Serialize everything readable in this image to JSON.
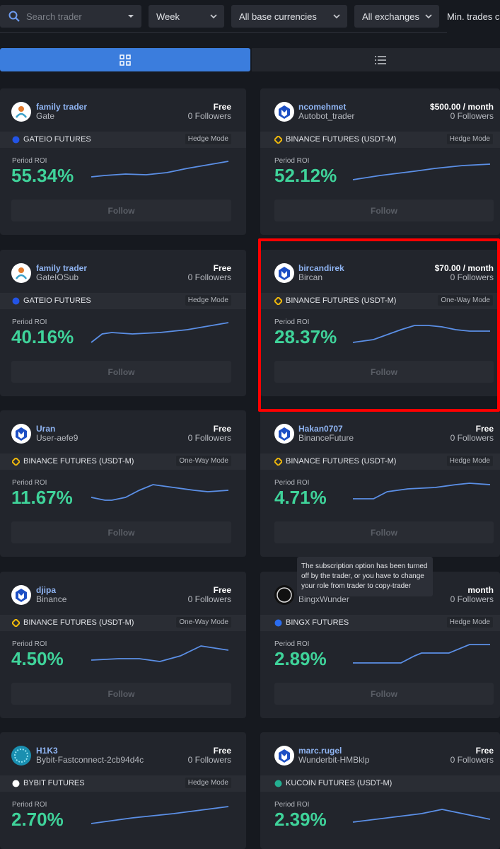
{
  "filters": {
    "search_placeholder": "Search trader",
    "period": "Week",
    "currencies": "All base currencies",
    "exchanges": "All exchanges",
    "min_trades": "Min. trades c"
  },
  "cards": [
    {
      "name": "family trader",
      "sub": "Gate",
      "price": "Free",
      "followers": "0 Followers",
      "exchange": "GATEIO FUTURES",
      "mode": "Hedge Mode",
      "roi_label": "Period ROI",
      "roi": "55.34%",
      "button": "Follow"
    },
    {
      "name": "ncomehmet",
      "sub": "Autobot_trader",
      "price": "$500.00 / month",
      "followers": "0 Followers",
      "exchange": "BINANCE FUTURES (USDT-M)",
      "mode": "Hedge Mode",
      "roi_label": "Period ROI",
      "roi": "52.12%",
      "button": "Follow"
    },
    {
      "name": "family trader",
      "sub": "GateIOSub",
      "price": "Free",
      "followers": "0 Followers",
      "exchange": "GATEIO FUTURES",
      "mode": "Hedge Mode",
      "roi_label": "Period ROI",
      "roi": "40.16%",
      "button": "Follow"
    },
    {
      "name": "bircandirek",
      "sub": "Bircan",
      "price": "$70.00 / month",
      "followers": "0 Followers",
      "exchange": "BINANCE FUTURES (USDT-M)",
      "mode": "One-Way Mode",
      "roi_label": "Period ROI",
      "roi": "28.37%",
      "button": "Follow"
    },
    {
      "name": "Uran",
      "sub": "User-aefe9",
      "price": "Free",
      "followers": "0 Followers",
      "exchange": "BINANCE FUTURES (USDT-M)",
      "mode": "One-Way Mode",
      "roi_label": "Period ROI",
      "roi": "11.67%",
      "button": "Follow"
    },
    {
      "name": "Hakan0707",
      "sub": "BinanceFuture",
      "price": "Free",
      "followers": "0 Followers",
      "exchange": "BINANCE FUTURES (USDT-M)",
      "mode": "Hedge Mode",
      "roi_label": "Period ROI",
      "roi": "4.71%",
      "button": "Follow"
    },
    {
      "name": "djipa",
      "sub": "Binance",
      "price": "Free",
      "followers": "0 Followers",
      "exchange": "BINANCE FUTURES (USDT-M)",
      "mode": "One-Way Mode",
      "roi_label": "Period ROI",
      "roi": "4.50%",
      "button": "Follow"
    },
    {
      "sub": "BingxWunder",
      "price": "month",
      "followers": "0 Followers",
      "exchange": "BINGX FUTURES",
      "mode": "Hedge Mode",
      "roi_label": "Period ROI",
      "roi": "2.89%",
      "button": "Follow"
    },
    {
      "name": "H1K3",
      "sub": "Bybit-Fastconnect-2cb94d4c",
      "price": "Free",
      "followers": "0 Followers",
      "exchange": "BYBIT FUTURES",
      "mode": "Hedge Mode",
      "roi_label": "Period ROI",
      "roi": "2.70%"
    },
    {
      "name": "marc.rugel",
      "sub": "Wunderbit-HMBklp",
      "price": "Free",
      "followers": "0 Followers",
      "exchange": "KUCOIN FUTURES (USDT-M)",
      "roi_label": "Period ROI",
      "roi": "2.39%"
    }
  ],
  "tooltip": "The subscription option has been turned off by the trader, or you have to change your role from trader to copy-trader"
}
